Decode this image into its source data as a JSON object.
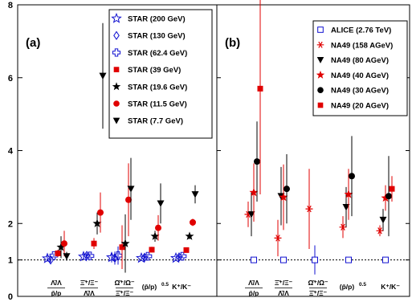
{
  "chart_data": [
    {
      "type": "scatter",
      "panel_label": "(a)",
      "ylim": [
        0,
        8
      ],
      "y_ticks": [
        "0",
        "1",
        "2",
        "4",
        "6",
        "8"
      ],
      "reference_line": 1,
      "grid": false,
      "legend_position": "top-right",
      "categories": [
        {
          "num": "Λ̄/Λ",
          "den": "p̄/p"
        },
        {
          "num": "Ξ̄⁺/Ξ⁻",
          "den": "Λ̄/Λ"
        },
        {
          "num": "Ω̄⁺/Ω⁻",
          "den": "Ξ̄⁺/Ξ⁻"
        },
        {
          "num": "(p̄/p)",
          "sup": "0.5"
        },
        {
          "num": "K⁺/K⁻"
        }
      ],
      "series": [
        {
          "name": "STAR (200 GeV)",
          "marker": "open-star",
          "color": "#1010d0",
          "values": [
            1.04,
            1.09,
            1.07,
            1.05,
            1.05
          ],
          "errors": [
            0.08,
            0.08,
            0.14,
            0.06,
            0.05
          ]
        },
        {
          "name": "STAR (130 GeV)",
          "marker": "open-diamond",
          "color": "#1010d0",
          "values": [
            1.0,
            1.12,
            1.05,
            1.07,
            1.08
          ],
          "errors": [
            0.06,
            0.07,
            0.18,
            0.07,
            0.06
          ]
        },
        {
          "name": "STAR (62.4 GeV)",
          "marker": "open-cross",
          "color": "#1010d0",
          "values": [
            1.12,
            1.11,
            1.12,
            1.1,
            1.1
          ],
          "errors": [
            0.06,
            0.07,
            0.25,
            0.07,
            0.06
          ]
        },
        {
          "name": "STAR (39 GeV)",
          "marker": "square",
          "color": "#e00000",
          "values": [
            1.18,
            1.45,
            1.35,
            1.28,
            1.27
          ],
          "errors": [
            0.1,
            0.15,
            0.6,
            0.08,
            0.06
          ]
        },
        {
          "name": "STAR (19.6 GeV)",
          "marker": "star",
          "color": "#000000",
          "values": [
            1.35,
            2.0,
            1.45,
            1.65,
            1.65
          ],
          "errors": [
            0.3,
            0.3,
            0.8,
            0.15,
            0.08
          ]
        },
        {
          "name": "STAR (11.5 GeV)",
          "marker": "circle",
          "color": "#e00000",
          "values": [
            1.45,
            2.3,
            2.65,
            1.88,
            2.03
          ],
          "errors": [
            0.35,
            0.55,
            1.0,
            0.35,
            0.1
          ]
        },
        {
          "name": "STAR (7.7 GeV)",
          "marker": "triangle-down",
          "color": "#000000",
          "values": [
            1.1,
            6.05,
            2.95,
            2.55,
            2.8
          ],
          "errors": [
            0.12,
            1.45,
            0.85,
            0.55,
            0.25
          ]
        }
      ]
    },
    {
      "type": "scatter",
      "panel_label": "(b)",
      "ylim": [
        0,
        8
      ],
      "reference_line": 1,
      "grid": false,
      "legend_position": "top-right",
      "categories": [
        {
          "num": "Λ̄/Λ",
          "den": "p̄/p"
        },
        {
          "num": "Ξ̄⁺/Ξ⁻",
          "den": "Λ̄/Λ"
        },
        {
          "num": "Ω̄⁺/Ω⁻",
          "den": "Ξ̄⁺/Ξ⁻"
        },
        {
          "num": "(p̄/p)",
          "sup": "0.5"
        },
        {
          "num": "K⁺/K⁻"
        }
      ],
      "series": [
        {
          "name": "ALICE (2.76 TeV)",
          "marker": "open-square",
          "color": "#1010d0",
          "values": [
            1.0,
            1.0,
            1.0,
            1.0,
            1.0
          ],
          "errors": [
            0.04,
            0.04,
            0.4,
            0.03,
            0.02
          ]
        },
        {
          "name": "NA49 (158 AGeV)",
          "marker": "asterisk",
          "color": "#e00000",
          "values": [
            2.25,
            1.6,
            2.4,
            1.9,
            1.8
          ],
          "errors": [
            0.35,
            0.5,
            1.1,
            0.3,
            0.15
          ]
        },
        {
          "name": "NA49 (80 AGeV)",
          "marker": "triangle-down",
          "color": "#000000",
          "values": [
            2.25,
            2.75,
            null,
            2.45,
            2.1
          ],
          "errors": [
            0.6,
            0.8,
            0,
            0.55,
            0.3
          ]
        },
        {
          "name": "NA49 (40 AGeV)",
          "marker": "star",
          "color": "#e00000",
          "values": [
            2.85,
            2.72,
            null,
            2.8,
            2.7
          ],
          "errors": [
            0.8,
            0.9,
            0,
            0.7,
            0.35
          ]
        },
        {
          "name": "NA49 (30 AGeV)",
          "marker": "circle",
          "color": "#000000",
          "values": [
            3.7,
            2.95,
            null,
            3.3,
            2.75
          ],
          "errors": [
            1.1,
            0.95,
            0,
            1.1,
            1.1
          ]
        },
        {
          "name": "NA49 (20 AGeV)",
          "marker": "square",
          "color": "#e00000",
          "values": [
            5.7,
            null,
            null,
            null,
            2.95
          ],
          "errors": [
            2.9,
            0,
            0,
            0,
            0.35
          ]
        }
      ]
    }
  ]
}
